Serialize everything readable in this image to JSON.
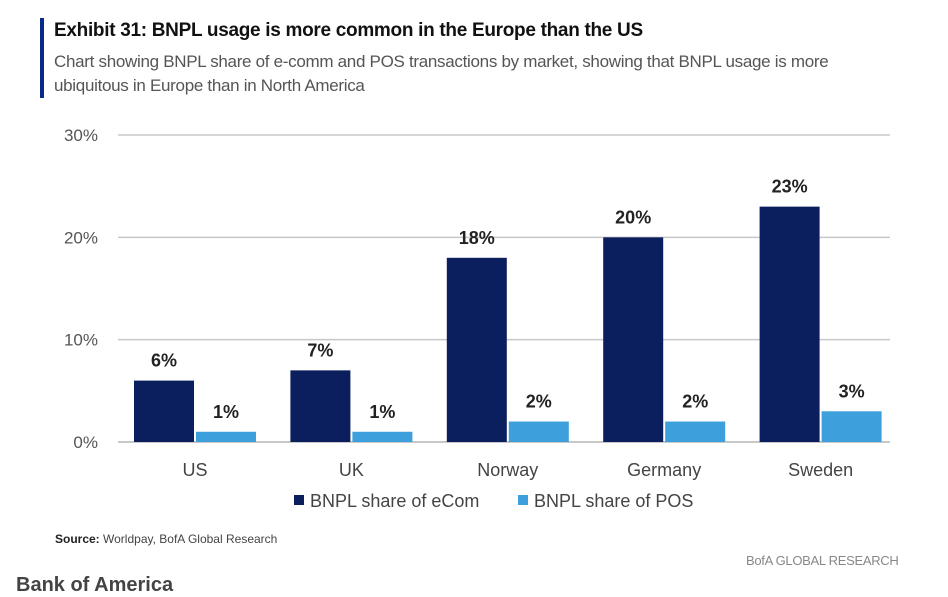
{
  "header": {
    "title": "Exhibit 31: BNPL usage is more common in the Europe than the US",
    "subtitle": "Chart showing BNPL share of e-comm and POS transactions by market, showing that BNPL usage is more ubiquitous in Europe than in North America"
  },
  "footer": {
    "source_label": "Source:",
    "source_text": " Worldpay, BofA Global Research",
    "brand": "BofA GLOBAL RESEARCH",
    "caption": "Bank of America"
  },
  "chart_data": {
    "type": "bar",
    "title": "Exhibit 31: BNPL usage is more common in the Europe than the US",
    "categories": [
      "US",
      "UK",
      "Norway",
      "Germany",
      "Sweden"
    ],
    "series": [
      {
        "name": "BNPL share of eCom",
        "values": [
          6,
          7,
          18,
          20,
          23
        ],
        "labels": [
          "6%",
          "7%",
          "18%",
          "20%",
          "23%"
        ],
        "color": "#0b1f5e"
      },
      {
        "name": "BNPL share of POS",
        "values": [
          1,
          1,
          2,
          2,
          3
        ],
        "labels": [
          "1%",
          "1%",
          "2%",
          "2%",
          "3%"
        ],
        "color": "#3d9fdc"
      }
    ],
    "ylim": [
      0,
      30
    ],
    "yticks": [
      0,
      10,
      20,
      30
    ],
    "ytick_labels": [
      "0%",
      "10%",
      "20%",
      "30%"
    ],
    "grid": true,
    "legend": "bottom",
    "xlabel": "",
    "ylabel": ""
  }
}
